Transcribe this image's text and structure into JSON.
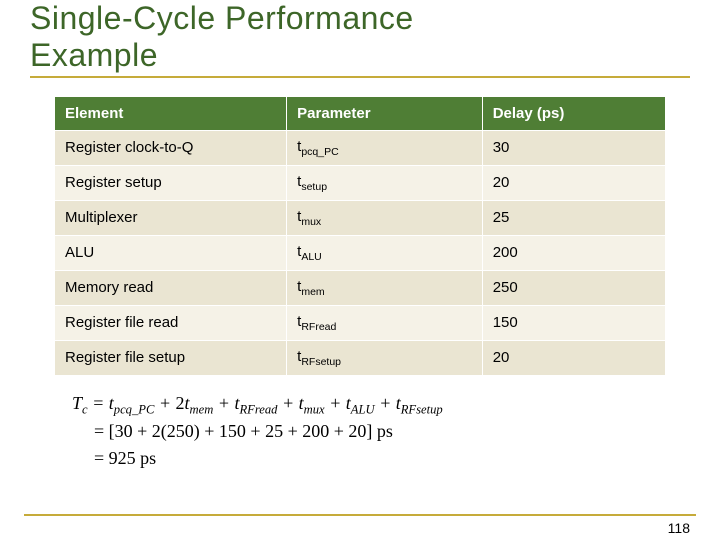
{
  "title": {
    "line1": "Single-Cycle Performance",
    "line2": "Example"
  },
  "table": {
    "headers": {
      "c1": "Element",
      "c2": "Parameter",
      "c3": "Delay (ps)"
    },
    "rows": [
      {
        "element": "Register clock-to-Q",
        "param_base": "t",
        "param_sub": "pcq_PC",
        "delay": "30"
      },
      {
        "element": "Register setup",
        "param_base": "t",
        "param_sub": "setup",
        "delay": "20"
      },
      {
        "element": "Multiplexer",
        "param_base": "t",
        "param_sub": "mux",
        "delay": "25"
      },
      {
        "element": "ALU",
        "param_base": "t",
        "param_sub": "ALU",
        "delay": "200"
      },
      {
        "element": "Memory read",
        "param_base": "t",
        "param_sub": "mem",
        "delay": "250"
      },
      {
        "element": "Register file read",
        "param_base": "t",
        "param_sub": "RFread",
        "delay": "150"
      },
      {
        "element": "Register file setup",
        "param_base": "t",
        "param_sub": "RFsetup",
        "delay": "20"
      }
    ]
  },
  "formula": {
    "l1_a": "T",
    "l1_a_sub": "c",
    "l1_b": " = t",
    "l1_b_sub": "pcq_PC",
    "l1_c": " + ",
    "l1_d": "2",
    "l1_e": "t",
    "l1_e_sub": "mem",
    "l1_f": " + t",
    "l1_f_sub": "RFread",
    "l1_g": " + t",
    "l1_g_sub": "mux",
    "l1_h": " + t",
    "l1_h_sub": "ALU",
    "l1_i": " + t",
    "l1_i_sub": "RFsetup",
    "l2": "= [30 + 2(250) + 150 + 25 + 200 + 20] ps",
    "l3": "= 925 ps"
  },
  "page_number": "118",
  "colors": {
    "title_color": "#3d6628",
    "rule_color": "#c6ab3a",
    "th_bg": "#4f7e35",
    "row_odd_bg": "#eae5d2",
    "row_even_bg": "#f5f2e7"
  }
}
